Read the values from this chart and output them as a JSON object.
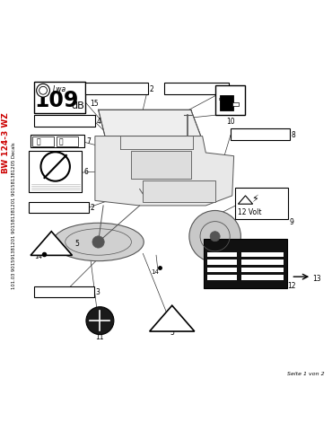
{
  "title": "BW 124-3 WZ",
  "serial_text": "101.03 901591381201 901581381201 901581381205 Decals",
  "page_text": "Seite 1 von 2",
  "background_color": "#ffffff",
  "text_color": "#000000",
  "red_text_color": "#cc0000",
  "blue_text_color": "#003399",
  "machine_color": "#555555",
  "dark_color": "#222222"
}
